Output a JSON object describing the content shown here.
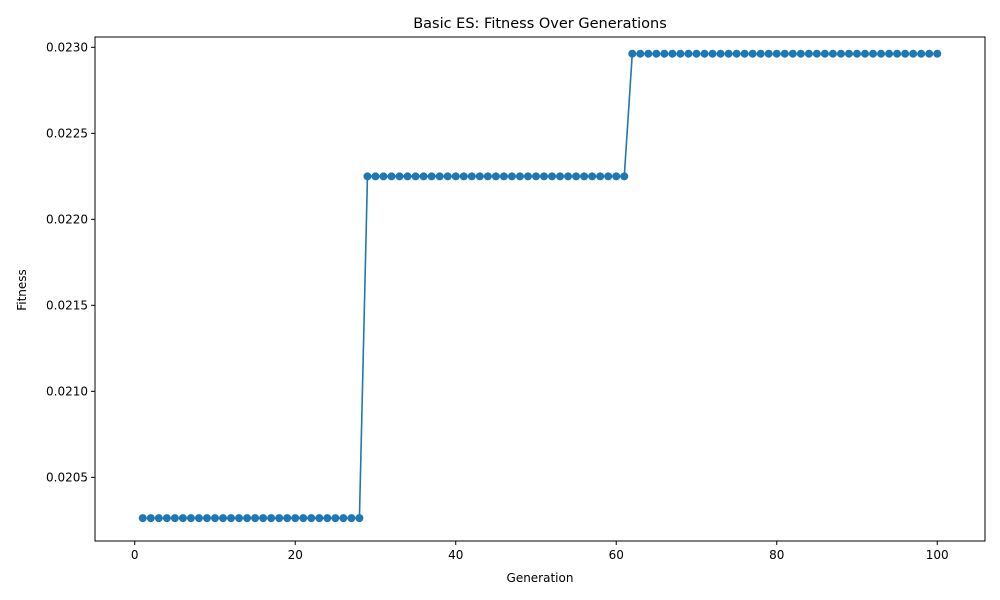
{
  "chart_data": {
    "type": "line",
    "title": "Basic ES: Fitness Over Generations",
    "xlabel": "Generation",
    "ylabel": "Fitness",
    "xlim": [
      -4.95,
      105.95
    ],
    "ylim": [
      0.02013,
      0.02306
    ],
    "x_ticks": [
      0,
      20,
      40,
      60,
      80,
      100
    ],
    "x_tick_labels": [
      "0",
      "20",
      "40",
      "60",
      "80",
      "100"
    ],
    "y_ticks": [
      0.0205,
      0.021,
      0.0215,
      0.022,
      0.0225,
      0.023
    ],
    "y_tick_labels": [
      "0.0205",
      "0.0210",
      "0.0215",
      "0.0220",
      "0.0225",
      "0.0230"
    ],
    "grid": false,
    "legend": "none",
    "marker": "circle",
    "series": [
      {
        "color": "#1f77b4",
        "segments": [
          {
            "x_start": 1,
            "x_end": 28,
            "y": 0.020263
          },
          {
            "x_start": 29,
            "x_end": 61,
            "y": 0.02225
          },
          {
            "x_start": 62,
            "x_end": 100,
            "y": 0.022963
          }
        ]
      }
    ]
  }
}
